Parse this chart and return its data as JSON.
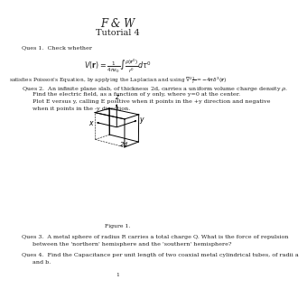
{
  "title": "F & W",
  "subtitle": "Tutorial 4",
  "background_color": "#ffffff",
  "text_color": "#222222",
  "page_number": "1",
  "fig_caption": "Figure 1.",
  "title_fs": 8.5,
  "sub_fs": 7.0,
  "body_fs": 4.6,
  "small_fs": 4.2,
  "q1_line": "Ques 1.  Check whether",
  "formula_text": "$V(\\mathbf{r}) = \\frac{1}{4\\pi\\varepsilon_0} \\int \\frac{\\rho(\\mathbf{r}')}{r'} d\\tau'$",
  "satisfies_text": "satisfies Poisson's Equation, by applying the Laplacian and using $\\nabla^2 \\frac{1}{r} = -4\\pi\\delta^3(\\mathbf{r})$",
  "q2_line1": "Ques 2.  An infinite plane slab, of thickness 2d, carries a uniform volume charge density $\\rho$.",
  "q2_line2": "Find the electric field, as a function of y only, where y=0 at the center.",
  "q2_line3": "Plot E versus y, calling E positive when it points in the +y direction and negative",
  "q2_line4": "when it points in the -y direction.",
  "q3_line1": "Ques 3.  A metal sphere of radius R carries a total charge Q. What is the force of repulsion",
  "q3_line2": "between the 'northern' hemisphere and the 'southern' hemisphere?",
  "q4_line1": "Ques 4.  Find the Capacitance per unit length of two coaxial metal cylindrical tubes, of radii a",
  "q4_line2": "and b."
}
